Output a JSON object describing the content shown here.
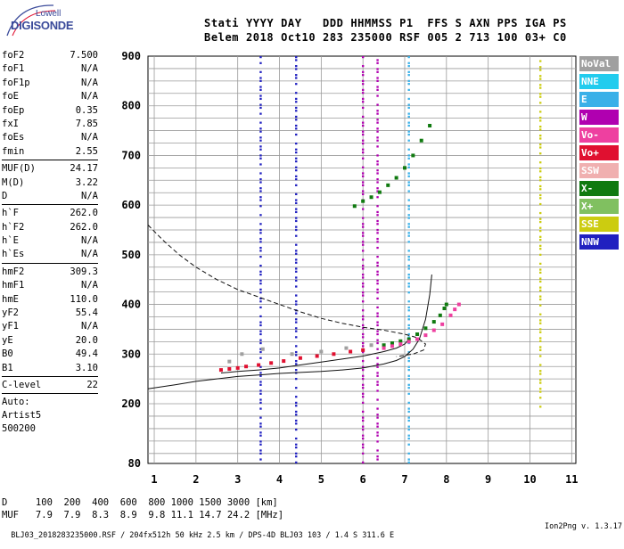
{
  "logo": {
    "line1": "Lowell",
    "line2": "DIGISONDE"
  },
  "header": {
    "line1": "Stati YYYY DAY   DDD HHMMSS P1  FFS S AXN PPS IGA PS",
    "line2": "Belem 2018 Oct10 283 235000 RSF 005 2 713 100 03+ C0"
  },
  "params": [
    [
      {
        "label": "foF2",
        "value": "7.500"
      },
      {
        "label": "foF1",
        "value": "N/A"
      },
      {
        "label": "foF1p",
        "value": "N/A"
      },
      {
        "label": "foE",
        "value": "N/A"
      },
      {
        "label": "foEp",
        "value": "0.35"
      },
      {
        "label": "fxI",
        "value": "7.85"
      },
      {
        "label": "foEs",
        "value": "N/A"
      },
      {
        "label": "fmin",
        "value": "2.55"
      }
    ],
    [
      {
        "label": "MUF(D)",
        "value": "24.17"
      },
      {
        "label": "M(D)",
        "value": "3.22"
      },
      {
        "label": "D",
        "value": "N/A"
      }
    ],
    [
      {
        "label": "h`F",
        "value": "262.0"
      },
      {
        "label": "h`F2",
        "value": "262.0"
      },
      {
        "label": "h`E",
        "value": "N/A"
      },
      {
        "label": "h`Es",
        "value": "N/A"
      }
    ],
    [
      {
        "label": "hmF2",
        "value": "309.3"
      },
      {
        "label": "hmF1",
        "value": "N/A"
      },
      {
        "label": "hmE",
        "value": "110.0"
      },
      {
        "label": "yF2",
        "value": "55.4"
      },
      {
        "label": "yF1",
        "value": "N/A"
      },
      {
        "label": "yE",
        "value": "20.0"
      },
      {
        "label": "B0",
        "value": "49.4"
      },
      {
        "label": "B1",
        "value": "3.10"
      }
    ],
    [
      {
        "label": "C-level",
        "value": "22"
      }
    ]
  ],
  "autoscaling": {
    "line1": "Auto:",
    "line2": "Artist5",
    "line3": "500200"
  },
  "legend": [
    {
      "label": "NoVal",
      "color": "#a0a0a0"
    },
    {
      "label": "NNE",
      "color": "#22ccee"
    },
    {
      "label": "E",
      "color": "#3ab0e8"
    },
    {
      "label": "W",
      "color": "#b000b0"
    },
    {
      "label": "Vo-",
      "color": "#ee40a0"
    },
    {
      "label": "Vo+",
      "color": "#e01030"
    },
    {
      "label": "SSW",
      "color": "#f0b0b0"
    },
    {
      "label": "X-",
      "color": "#107a10"
    },
    {
      "label": "X+",
      "color": "#80c060"
    },
    {
      "label": "SSE",
      "color": "#cccc10"
    },
    {
      "label": "NNW",
      "color": "#2020c0"
    }
  ],
  "distance_table": {
    "line1": "D     100  200  400  600  800 1000 1500 3000 [km]",
    "line2": "MUF   7.9  7.9  8.3  8.9  9.8 11.1 14.7 24.2 [MHz]"
  },
  "footer": {
    "left": "BLJ03_2018283235000.RSF / 204fx512h 50 kHz 2.5 km / DPS-4D BLJ03 103 / 1.4 S 311.6 E",
    "right": "Ion2Png v. 1.3.17"
  },
  "chart_data": {
    "type": "scatter",
    "title": "",
    "xlabel": "",
    "ylabel": "",
    "xlim": [
      0.85,
      11.1
    ],
    "ylim": [
      80,
      900
    ],
    "xticks": [
      "1",
      "2",
      "3",
      "4",
      "5",
      "6",
      "7",
      "8",
      "9",
      "10",
      "11"
    ],
    "yticks": [
      "80",
      "200",
      "300",
      "400",
      "500",
      "600",
      "700",
      "800",
      "900"
    ],
    "ytick_values": [
      80,
      200,
      300,
      400,
      500,
      600,
      700,
      800,
      900
    ],
    "grid": true,
    "series": [
      {
        "name": "X-",
        "points": [
          [
            6.5,
            318
          ],
          [
            6.7,
            322
          ],
          [
            6.9,
            326
          ],
          [
            7.1,
            330
          ],
          [
            7.3,
            340
          ],
          [
            7.5,
            352
          ],
          [
            7.7,
            365
          ],
          [
            7.85,
            378
          ],
          [
            7.95,
            392
          ],
          [
            8.0,
            400
          ]
        ]
      },
      {
        "name": "Vo-",
        "points": [
          [
            6.5,
            312
          ],
          [
            6.7,
            316
          ],
          [
            6.9,
            320
          ],
          [
            7.1,
            325
          ],
          [
            7.3,
            330
          ],
          [
            7.5,
            338
          ],
          [
            7.7,
            348
          ],
          [
            7.9,
            360
          ],
          [
            8.1,
            378
          ],
          [
            8.2,
            390
          ],
          [
            8.3,
            400
          ]
        ]
      },
      {
        "name": "Vo+",
        "points": [
          [
            2.6,
            268
          ],
          [
            2.8,
            270
          ],
          [
            3.0,
            272
          ],
          [
            3.2,
            275
          ],
          [
            3.5,
            278
          ],
          [
            3.8,
            282
          ],
          [
            4.1,
            286
          ],
          [
            4.5,
            292
          ],
          [
            4.9,
            296
          ],
          [
            5.3,
            300
          ],
          [
            5.7,
            305
          ],
          [
            6.0,
            308
          ]
        ]
      },
      {
        "name": "X-",
        "points": [
          [
            5.8,
            598
          ],
          [
            6.0,
            608
          ],
          [
            6.2,
            616
          ],
          [
            6.4,
            626
          ],
          [
            6.6,
            640
          ],
          [
            6.8,
            655
          ],
          [
            7.0,
            675
          ],
          [
            7.2,
            700
          ],
          [
            7.4,
            730
          ],
          [
            7.6,
            760
          ]
        ]
      },
      {
        "name": "NoVal",
        "points": [
          [
            2.8,
            285
          ],
          [
            3.1,
            300
          ],
          [
            3.6,
            310
          ],
          [
            4.3,
            300
          ],
          [
            5.0,
            305
          ],
          [
            5.6,
            312
          ],
          [
            6.2,
            318
          ]
        ]
      }
    ],
    "lines": [
      {
        "name": "profile_dashed",
        "style": "dashed",
        "points": [
          [
            0.85,
            560
          ],
          [
            1.2,
            530
          ],
          [
            1.6,
            500
          ],
          [
            2.0,
            475
          ],
          [
            2.5,
            450
          ],
          [
            3.0,
            430
          ],
          [
            3.5,
            415
          ],
          [
            4.0,
            400
          ],
          [
            4.5,
            385
          ],
          [
            5.0,
            372
          ],
          [
            5.5,
            362
          ],
          [
            6.0,
            354
          ],
          [
            6.5,
            348
          ],
          [
            7.0,
            340
          ],
          [
            7.3,
            333
          ],
          [
            7.5,
            320
          ],
          [
            7.45,
            308
          ],
          [
            7.2,
            300
          ],
          [
            6.8,
            295
          ]
        ]
      },
      {
        "name": "profile_solid",
        "style": "solid",
        "points": [
          [
            0.85,
            230
          ],
          [
            1.5,
            238
          ],
          [
            2.0,
            245
          ],
          [
            2.5,
            250
          ],
          [
            3.0,
            255
          ],
          [
            3.5,
            258
          ],
          [
            4.0,
            261
          ],
          [
            4.5,
            263
          ],
          [
            5.0,
            265
          ],
          [
            5.5,
            268
          ],
          [
            6.0,
            272
          ],
          [
            6.5,
            280
          ],
          [
            6.8,
            287
          ],
          [
            7.0,
            295
          ],
          [
            7.2,
            310
          ],
          [
            7.35,
            330
          ],
          [
            7.5,
            370
          ],
          [
            7.6,
            420
          ],
          [
            7.65,
            460
          ]
        ]
      },
      {
        "name": "trace_fit",
        "style": "solid",
        "points": [
          [
            2.6,
            262
          ],
          [
            3.0,
            265
          ],
          [
            3.5,
            268
          ],
          [
            4.0,
            272
          ],
          [
            4.5,
            278
          ],
          [
            5.0,
            284
          ],
          [
            5.5,
            290
          ],
          [
            6.0,
            296
          ],
          [
            6.5,
            305
          ],
          [
            6.8,
            312
          ],
          [
            7.0,
            320
          ],
          [
            7.1,
            330
          ]
        ]
      }
    ],
    "vertical_strips": [
      {
        "x": 3.55,
        "color": "#2020c0",
        "from": 80,
        "to": 900
      },
      {
        "x": 4.4,
        "color": "#2020c0",
        "from": 80,
        "to": 900
      },
      {
        "x": 6.0,
        "color": "#b000b0",
        "from": 80,
        "to": 900
      },
      {
        "x": 6.35,
        "color": "#b000b0",
        "from": 80,
        "to": 900
      },
      {
        "x": 7.1,
        "color": "#3ab0e8",
        "from": 80,
        "to": 900
      },
      {
        "x": 10.25,
        "color": "#cccc10",
        "from": 180,
        "to": 900
      }
    ]
  }
}
